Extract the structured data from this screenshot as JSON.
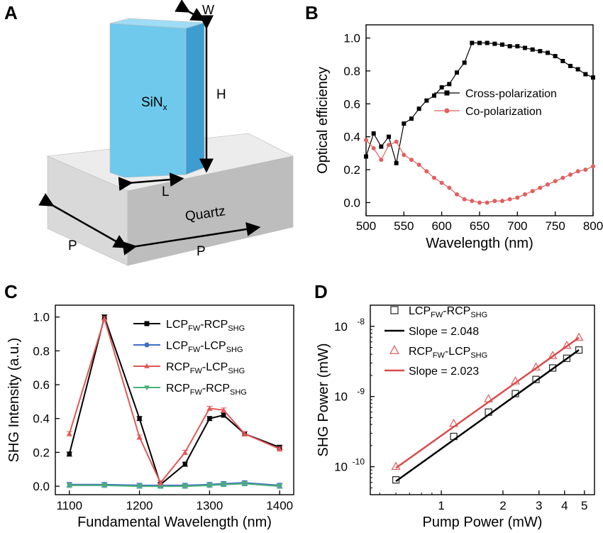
{
  "panels": {
    "a": {
      "label": "A",
      "pillar_label": "SiN",
      "pillar_label_sub": "x",
      "dims": {
        "w": "W",
        "h": "H",
        "l": "L",
        "p1": "P",
        "p2": "P"
      },
      "substrate_label": "Quartz",
      "colors": {
        "pillar_front": "#6ec9ec",
        "pillar_side": "#3e9dd0",
        "pillar_top": "#9fdcf5",
        "sub_top": "#ececec",
        "sub_front": "#d9d9d9",
        "sub_side": "#bdbdbd"
      }
    },
    "b": {
      "label": "B"
    },
    "c": {
      "label": "C"
    },
    "d": {
      "label": "D"
    }
  },
  "chart_data": [
    {
      "id": "B",
      "type": "line",
      "xlabel": "Wavelength (nm)",
      "ylabel": "Optical efficiency",
      "xlim": [
        500,
        800
      ],
      "ylim": [
        -0.08,
        1.08
      ],
      "xticks": [
        500,
        550,
        600,
        650,
        700,
        750,
        800
      ],
      "yticks": [
        0.0,
        0.2,
        0.4,
        0.6,
        0.8,
        1.0
      ],
      "xtick_labels": [
        "500",
        "550",
        "600",
        "650",
        "700",
        "750",
        "800"
      ],
      "ytick_labels": [
        "0.0",
        "0.2",
        "0.4",
        "0.6",
        "0.8",
        "1.0"
      ],
      "legend_position": "center-right",
      "series": [
        {
          "name": "Cross-polarization",
          "marker": "square",
          "color": "#000000",
          "fill": "#000000",
          "x": [
            500,
            510,
            520,
            530,
            540,
            550,
            560,
            570,
            580,
            590,
            600,
            610,
            620,
            630,
            640,
            650,
            660,
            670,
            680,
            690,
            700,
            710,
            720,
            730,
            740,
            750,
            760,
            770,
            780,
            790,
            800
          ],
          "y": [
            0.28,
            0.42,
            0.34,
            0.4,
            0.24,
            0.48,
            0.51,
            0.57,
            0.62,
            0.65,
            0.7,
            0.72,
            0.79,
            0.85,
            0.97,
            0.97,
            0.97,
            0.965,
            0.96,
            0.95,
            0.95,
            0.94,
            0.93,
            0.92,
            0.91,
            0.89,
            0.86,
            0.83,
            0.81,
            0.78,
            0.76
          ]
        },
        {
          "name": "Co-polarization",
          "marker": "circle",
          "color": "#e06060",
          "fill": "#e06060",
          "x": [
            500,
            510,
            520,
            530,
            540,
            550,
            560,
            570,
            580,
            590,
            600,
            610,
            620,
            630,
            640,
            650,
            660,
            670,
            680,
            690,
            700,
            710,
            720,
            730,
            740,
            750,
            760,
            770,
            780,
            790,
            800
          ],
          "y": [
            0.38,
            0.33,
            0.26,
            0.35,
            0.37,
            0.29,
            0.26,
            0.23,
            0.19,
            0.15,
            0.12,
            0.09,
            0.05,
            0.02,
            0.01,
            0.0,
            0.0,
            0.01,
            0.01,
            0.02,
            0.03,
            0.05,
            0.07,
            0.09,
            0.11,
            0.13,
            0.15,
            0.17,
            0.19,
            0.2,
            0.22
          ]
        }
      ]
    },
    {
      "id": "C",
      "type": "line",
      "xlabel": "Fundamental Wavelength (nm)",
      "ylabel": "SHG Intensity (a.u.)",
      "xlim": [
        1080,
        1420
      ],
      "ylim": [
        -0.05,
        1.07
      ],
      "xticks": [
        1100,
        1200,
        1300,
        1400
      ],
      "yticks": [
        0.0,
        0.2,
        0.4,
        0.6,
        0.8,
        1.0
      ],
      "xtick_labels": [
        "1100",
        "1200",
        "1300",
        "1400"
      ],
      "ytick_labels": [
        "0.0",
        "0.2",
        "0.4",
        "0.6",
        "0.8",
        "1.0"
      ],
      "legend_position": "top-right",
      "series": [
        {
          "name": "LCP",
          "name_sub1": "FW",
          "name_mid": "-RCP",
          "name_sub2": "SHG",
          "marker": "square",
          "color": "#000000",
          "x": [
            1100,
            1150,
            1200,
            1230,
            1265,
            1300,
            1320,
            1350,
            1400
          ],
          "y": [
            0.19,
            1.0,
            0.4,
            0.01,
            0.13,
            0.4,
            0.42,
            0.31,
            0.23
          ]
        },
        {
          "name": "LCP",
          "name_sub1": "FW",
          "name_mid": "-LCP",
          "name_sub2": "SHG",
          "marker": "circle",
          "color": "#3d6fc4",
          "x": [
            1100,
            1150,
            1200,
            1230,
            1265,
            1300,
            1320,
            1350,
            1400
          ],
          "y": [
            0.01,
            0.01,
            0.005,
            0.005,
            0.005,
            0.01,
            0.015,
            0.02,
            0.005
          ]
        },
        {
          "name": "RCP",
          "name_sub1": "FW",
          "name_mid": "-LCP",
          "name_sub2": "SHG",
          "marker": "triangle-up",
          "color": "#e05858",
          "x": [
            1100,
            1150,
            1200,
            1230,
            1265,
            1300,
            1320,
            1350,
            1400
          ],
          "y": [
            0.31,
            0.99,
            0.29,
            0.02,
            0.2,
            0.46,
            0.45,
            0.31,
            0.22
          ]
        },
        {
          "name": "RCP",
          "name_sub1": "FW",
          "name_mid": "-RCP",
          "name_sub2": "SHG",
          "marker": "triangle-down",
          "color": "#4caf7a",
          "x": [
            1100,
            1150,
            1200,
            1230,
            1265,
            1300,
            1320,
            1350,
            1400
          ],
          "y": [
            0.005,
            0.005,
            0.0,
            0.0,
            0.0,
            0.005,
            0.01,
            0.015,
            0.0
          ]
        }
      ]
    },
    {
      "id": "D",
      "type": "scatter",
      "xlabel": "Pump Power (mW)",
      "ylabel": "SHG Power (mW)",
      "xscale": "log",
      "yscale": "log",
      "xlim": [
        0.45,
        5.6
      ],
      "ylim": [
        4e-11,
        2e-08
      ],
      "xticks": [
        1,
        2,
        3,
        4,
        5
      ],
      "xtick_labels": [
        "1",
        "2",
        "3",
        "4",
        "5"
      ],
      "yticks": [
        1e-10,
        1e-09,
        1e-08
      ],
      "ytick_labels": [
        "10",
        "10",
        "10"
      ],
      "ytick_exponents": [
        "-10",
        "-9",
        "-8"
      ],
      "legend_position": "top-left",
      "series": [
        {
          "name": "LCP",
          "name_sub1": "FW",
          "name_mid": "-RCP",
          "name_sub2": "SHG",
          "marker": "square-open",
          "color": "#333333",
          "x": [
            0.6,
            1.15,
            1.7,
            2.3,
            2.9,
            3.5,
            4.1,
            4.7
          ],
          "y": [
            6.5e-11,
            2.7e-10,
            6e-10,
            1.1e-09,
            1.75e-09,
            2.55e-09,
            3.5e-09,
            4.6e-09
          ]
        },
        {
          "name": "Slope = 2.048",
          "type": "fit",
          "color": "#000000",
          "x": [
            0.6,
            4.7
          ],
          "y": [
            6.2e-11,
            4.6e-09
          ]
        },
        {
          "name": "RCP",
          "name_sub1": "FW",
          "name_mid": "-LCP",
          "name_sub2": "SHG",
          "marker": "triangle-open",
          "color": "#e06666",
          "x": [
            0.6,
            1.15,
            1.7,
            2.3,
            2.9,
            3.5,
            4.1,
            4.7
          ],
          "y": [
            1e-10,
            4.1e-10,
            9.2e-10,
            1.65e-09,
            2.6e-09,
            3.8e-09,
            5.3e-09,
            6.9e-09
          ]
        },
        {
          "name": "Slope = 2.023",
          "type": "fit",
          "color": "#d94a4a",
          "x": [
            0.6,
            4.7
          ],
          "y": [
            9.6e-11,
            6.9e-09
          ]
        }
      ]
    }
  ]
}
